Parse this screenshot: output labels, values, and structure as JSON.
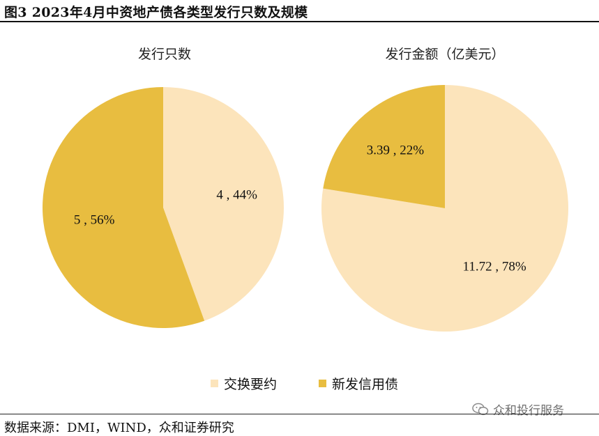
{
  "figure": {
    "title": "图3 2023年4月中资地产债各类型发行只数及规模",
    "source": "数据来源：DMI，WIND，众和证券研究"
  },
  "watermark": {
    "text": "众和投行服务",
    "icon": "wechat-icon"
  },
  "colors": {
    "exchangeable": "#FCE4BB",
    "new_credit": "#E8BD40"
  },
  "legend": [
    {
      "label": "交换要约",
      "color": "#FCE4BB"
    },
    {
      "label": "新发信用债",
      "color": "#E8BD40"
    }
  ],
  "chart_data": [
    {
      "type": "pie",
      "title": "发行只数",
      "labels": [
        "交换要约",
        "新发信用债"
      ],
      "values": [
        4,
        5
      ],
      "percents": [
        44,
        56
      ],
      "data_labels": [
        "4 , 44%",
        "5 , 56%"
      ]
    },
    {
      "type": "pie",
      "title": "发行金额（亿美元）",
      "labels": [
        "交换要约",
        "新发信用债"
      ],
      "values": [
        11.72,
        3.39
      ],
      "percents": [
        78,
        22
      ],
      "data_labels": [
        "11.72 , 78%",
        "3.39 , 22%"
      ]
    }
  ]
}
